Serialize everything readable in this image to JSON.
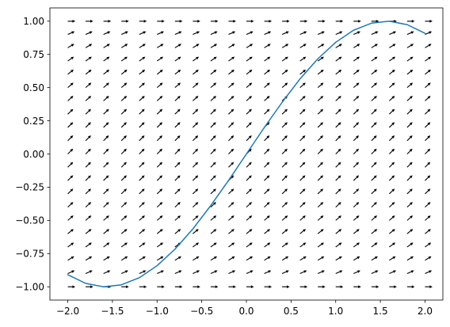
{
  "chart_data": {
    "type": "line",
    "subtype": "slope-field-with-solution-curve",
    "title": "",
    "xlabel": "",
    "ylabel": "",
    "xlim": [
      -2.2,
      2.2
    ],
    "ylim": [
      -1.1,
      1.1
    ],
    "grid": false,
    "legend": "none",
    "x_ticks": [
      -2.0,
      -1.5,
      -1.0,
      -0.5,
      0.0,
      0.5,
      1.0,
      1.5,
      2.0
    ],
    "x_tick_labels": [
      "−2.0",
      "−1.5",
      "−1.0",
      "−0.5",
      "0.0",
      "0.5",
      "1.0",
      "1.5",
      "2.0"
    ],
    "y_ticks": [
      -1.0,
      -0.75,
      -0.5,
      -0.25,
      0.0,
      0.25,
      0.5,
      0.75,
      1.0
    ],
    "y_tick_labels": [
      "−1.00",
      "−0.75",
      "−0.50",
      "−0.25",
      "0.00",
      "0.25",
      "0.50",
      "0.75",
      "1.00"
    ],
    "slope_field": {
      "x_range": [
        -2.0,
        2.0
      ],
      "y_range": [
        -1.0,
        1.0
      ],
      "grid_count": 21,
      "slope": "sqrt(1 - y^2)",
      "color": "#000000"
    },
    "series": [
      {
        "color": "#1f77b4",
        "x": [
          -2.0,
          -1.8,
          -1.6,
          -1.4,
          -1.2,
          -1.0,
          -0.8,
          -0.6,
          -0.4,
          -0.2,
          0.0,
          0.2,
          0.4,
          0.6,
          0.8,
          1.0,
          1.2,
          1.4,
          1.6,
          1.8,
          2.0
        ],
        "y": [
          -0.909,
          -0.974,
          -1.0,
          -0.985,
          -0.932,
          -0.841,
          -0.717,
          -0.565,
          -0.389,
          -0.199,
          0.0,
          0.199,
          0.389,
          0.565,
          0.717,
          0.841,
          0.932,
          0.985,
          1.0,
          0.974,
          0.909
        ]
      }
    ]
  }
}
